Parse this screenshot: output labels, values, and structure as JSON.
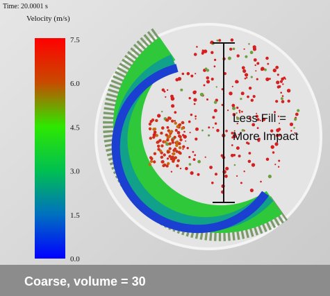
{
  "header": {
    "time": "Time: 20.0001 s"
  },
  "colorbar": {
    "title": "Velocity (m/s)",
    "ticks": [
      "7.5",
      "6.0",
      "4.5",
      "3.0",
      "1.5",
      "0.0"
    ]
  },
  "annotation": {
    "lines": [
      "Less Fill =",
      "More Impact"
    ]
  },
  "caption": "Coarse, volume = 30"
}
